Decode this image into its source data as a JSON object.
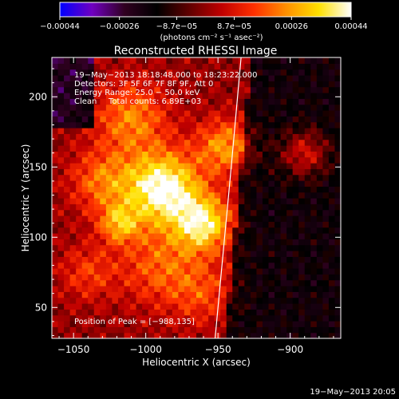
{
  "chart_data": {
    "type": "heatmap",
    "title": "Reconstructed RHESSI Image",
    "xlabel": "Heliocentric X (arcsec)",
    "ylabel": "Heliocentric Y (arcsec)",
    "xlim": [
      -1065,
      -865
    ],
    "ylim": [
      28,
      228
    ],
    "x_ticks": [
      -1050,
      -1000,
      -950,
      -900
    ],
    "x_tick_labels": [
      "−1050",
      "−1000",
      "−950",
      "−900"
    ],
    "y_ticks": [
      50,
      100,
      150,
      200
    ],
    "y_tick_labels": [
      "50",
      "100",
      "150",
      "200"
    ],
    "colorbar": {
      "range": [
        -0.00044,
        0.00044
      ],
      "ticks": [
        -0.00044,
        -0.00026,
        -8.7e-05,
        8.7e-05,
        0.00026,
        0.00044
      ],
      "tick_labels": [
        "−0.00044",
        "−0.00026",
        "−8.7e−05",
        "8.7e−05",
        "0.00026",
        "0.00044"
      ],
      "unit_label": "(photons cm⁻² s⁻¹ asec⁻²)",
      "colors": [
        "#0000ff",
        "#7000c0",
        "#300020",
        "#000000",
        "#600000",
        "#c00000",
        "#ff3000",
        "#ff9000",
        "#ffe000",
        "#ffffff"
      ]
    },
    "sources": [
      {
        "x": -988,
        "y": 135,
        "sigma": 18,
        "amp": 1.0
      },
      {
        "x": -960,
        "y": 110,
        "sigma": 14,
        "amp": 0.8
      },
      {
        "x": -1018,
        "y": 110,
        "sigma": 10,
        "amp": 0.55
      },
      {
        "x": -945,
        "y": 165,
        "sigma": 14,
        "amp": 0.55
      },
      {
        "x": -890,
        "y": 160,
        "sigma": 12,
        "amp": 0.5
      },
      {
        "x": -1010,
        "y": 185,
        "sigma": 18,
        "amp": 0.5
      },
      {
        "x": -1030,
        "y": 140,
        "sigma": 16,
        "amp": 0.45
      },
      {
        "x": -990,
        "y": 80,
        "sigma": 20,
        "amp": 0.4
      },
      {
        "x": -960,
        "y": 60,
        "sigma": 16,
        "amp": 0.3
      },
      {
        "x": -1040,
        "y": 75,
        "sigma": 14,
        "amp": 0.3
      }
    ],
    "limb_curve": [
      [
        -952,
        28
      ],
      [
        -945,
        100
      ],
      [
        -940,
        160
      ],
      [
        -934,
        228
      ]
    ]
  },
  "labels": {
    "time_range": "19−May−2013 18:18:48.000 to 18:23:22.000",
    "detectors": "Detectors: 3F 5F 6F 7F 8F 9F, Att 0",
    "energy": "Energy Range: 25.0 − 50.0 keV",
    "clean_method": "Clean",
    "counts": "Total counts: 6.89E+03",
    "peak": "Position of Peak = [−988,135]",
    "timestamp": "19−May−2013 20:05"
  }
}
